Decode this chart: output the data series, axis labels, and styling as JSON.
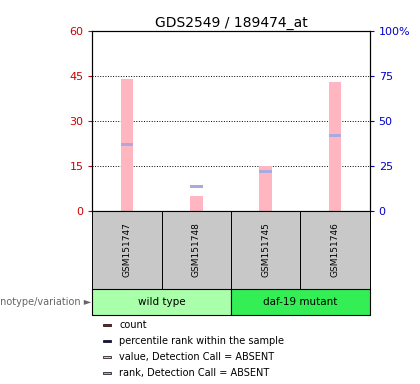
{
  "title": "GDS2549 / 189474_at",
  "samples": [
    "GSM151747",
    "GSM151748",
    "GSM151745",
    "GSM151746"
  ],
  "groups": [
    "wild type",
    "wild type",
    "daf-19 mutant",
    "daf-19 mutant"
  ],
  "pink_values": [
    44,
    5,
    15,
    43
  ],
  "blue_values": [
    22,
    8,
    13,
    25
  ],
  "pink_color": "#FFB6C1",
  "blue_color": "#AAAADD",
  "left_ylim": [
    0,
    60
  ],
  "right_ylim": [
    0,
    100
  ],
  "left_yticks": [
    0,
    15,
    30,
    45,
    60
  ],
  "right_yticks": [
    0,
    25,
    50,
    75,
    100
  ],
  "left_yticklabels": [
    "0",
    "15",
    "30",
    "45",
    "60"
  ],
  "right_yticklabels": [
    "0",
    "25",
    "50",
    "75",
    "100%"
  ],
  "left_color": "#CC0000",
  "right_color": "#0000CC",
  "bar_width": 0.18,
  "legend_items": [
    {
      "color": "#CC0000",
      "label": "count"
    },
    {
      "color": "#0000CC",
      "label": "percentile rank within the sample"
    },
    {
      "color": "#FFB6C1",
      "label": "value, Detection Call = ABSENT"
    },
    {
      "color": "#AAAADD",
      "label": "rank, Detection Call = ABSENT"
    }
  ],
  "group_label": "genotype/variation",
  "wild_type_color": "#AAFFAA",
  "daf19_color": "#33EE55",
  "sample_box_color": "#C8C8C8",
  "bg_color": "#FFFFFF"
}
